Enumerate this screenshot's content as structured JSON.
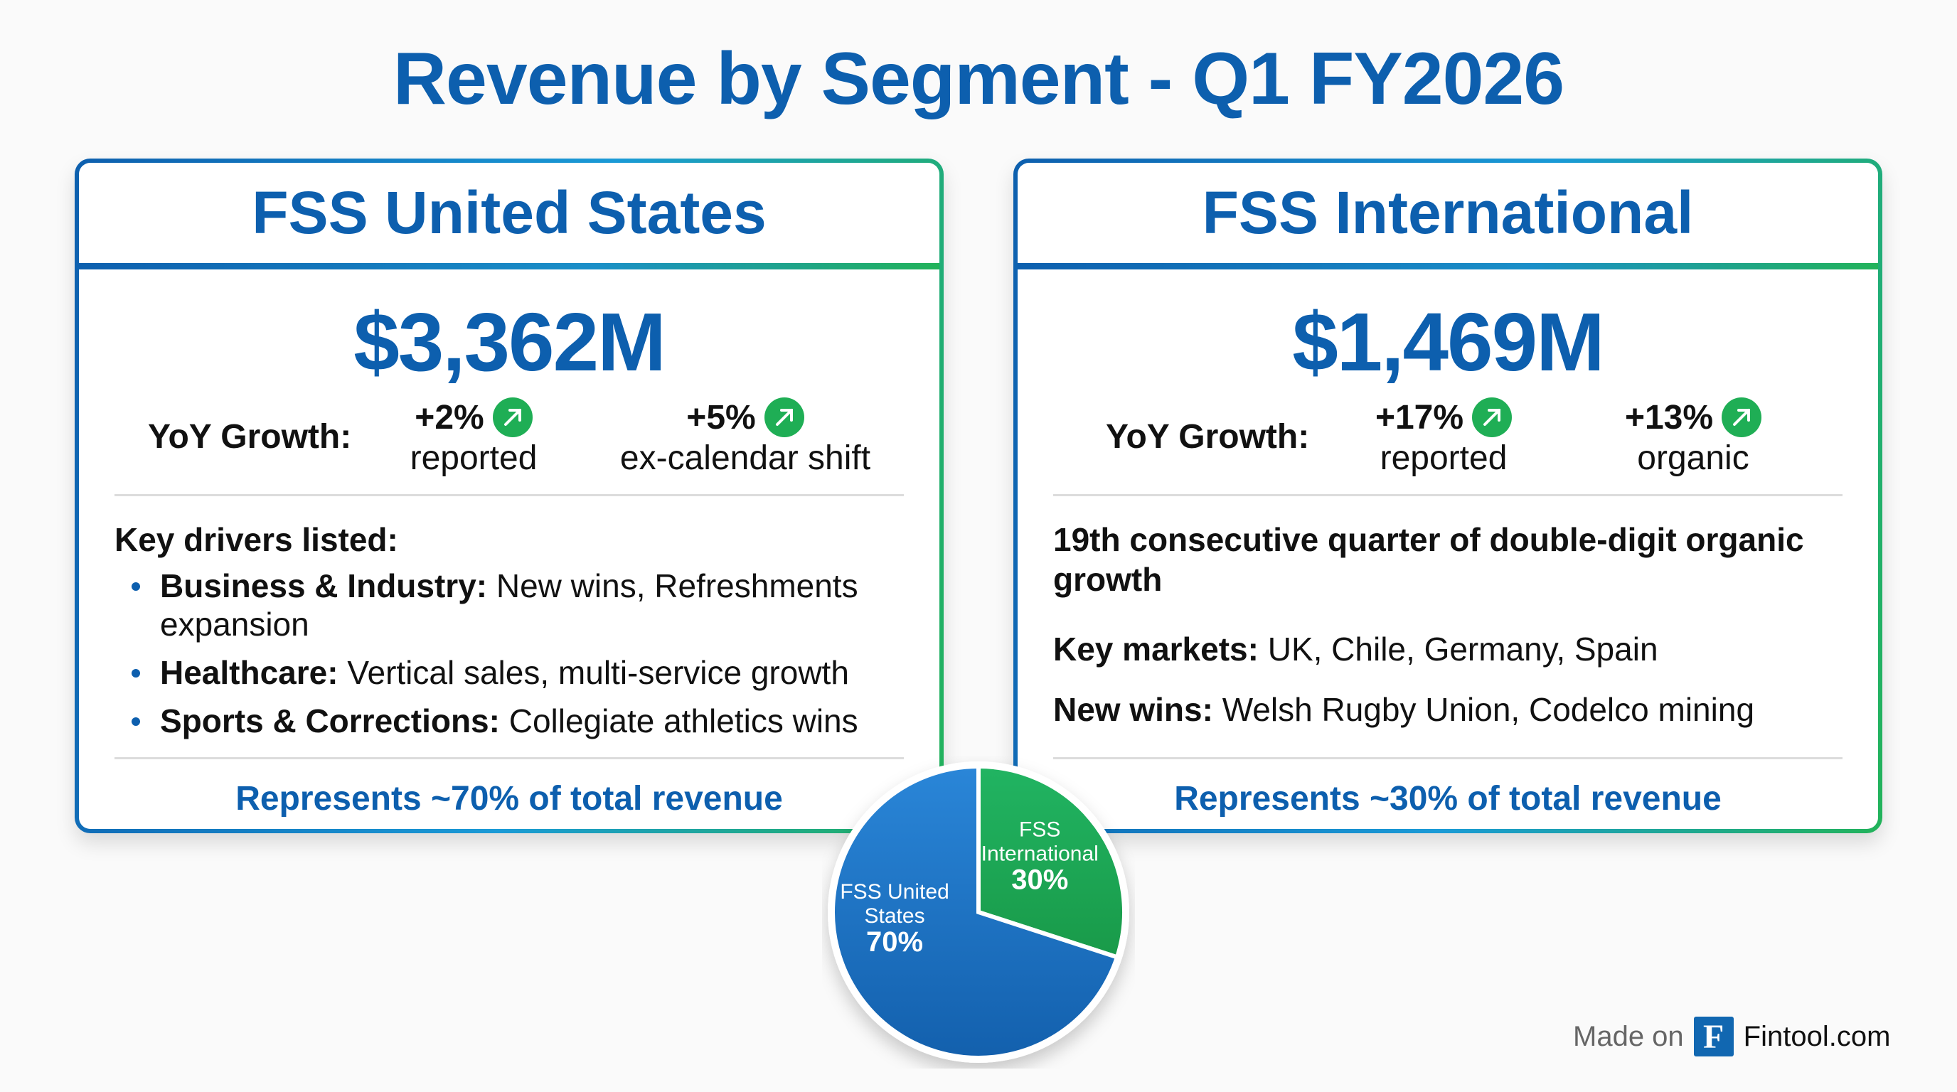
{
  "title": "Revenue by Segment - Q1 FY2026",
  "colors": {
    "brand_blue": "#0d5fae",
    "brand_green": "#1fae55",
    "pie_us": "#1a6fc4",
    "pie_intl": "#1fa653"
  },
  "us": {
    "heading": "FSS United States",
    "revenue": "$3,362M",
    "yoy_label": "YoY Growth:",
    "growth": [
      {
        "value": "+2%",
        "label": "reported",
        "icon": "arrow-up-right-icon"
      },
      {
        "value": "+5%",
        "label": "ex-calendar shift",
        "icon": "arrow-up-right-icon"
      }
    ],
    "drivers_heading": "Key drivers listed:",
    "drivers": [
      {
        "name": "Business & Industry:",
        "text": " New wins, Refreshments expansion"
      },
      {
        "name": "Healthcare:",
        "text": " Vertical sales, multi-service growth"
      },
      {
        "name": "Sports & Corrections:",
        "text": " Collegiate athletics wins"
      }
    ],
    "footer": "Represents ~70% of total revenue"
  },
  "intl": {
    "heading": "FSS International",
    "revenue": "$1,469M",
    "yoy_label": "YoY Growth:",
    "growth": [
      {
        "value": "+17%",
        "label": "reported",
        "icon": "arrow-up-right-icon"
      },
      {
        "value": "+13%",
        "label": "organic",
        "icon": "arrow-up-right-icon"
      }
    ],
    "highlight": "19th consecutive quarter of double-digit organic growth",
    "markets_label": "Key markets:",
    "markets": " UK, Chile, Germany, Spain",
    "wins_label": "New wins:",
    "wins": " Welsh Rugby Union, Codelco mining",
    "footer": "Represents ~30% of total revenue"
  },
  "chart_data": {
    "type": "pie",
    "categories": [
      "FSS International",
      "FSS United States"
    ],
    "values": [
      30,
      70
    ],
    "labels": [
      {
        "name_lines": [
          "FSS",
          "International"
        ],
        "pct": "30%"
      },
      {
        "name_lines": [
          "FSS United",
          "States"
        ],
        "pct": "70%"
      }
    ],
    "start": "12 o'clock",
    "direction": "clockwise"
  },
  "credit": {
    "prefix": "Made on",
    "logo_letter": "F",
    "site": "Fintool.com"
  }
}
